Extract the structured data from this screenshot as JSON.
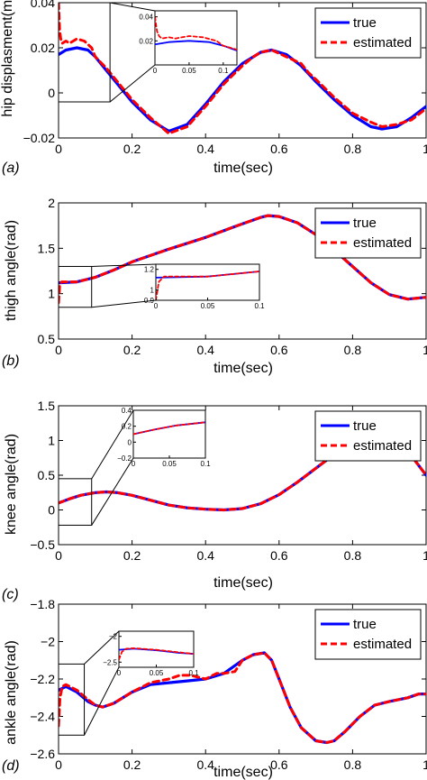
{
  "chart_data": [
    {
      "type": "line",
      "panel": "(a)",
      "xlabel": "time(sec)",
      "ylabel": "hip displasment(m)",
      "xlim": [
        0,
        1
      ],
      "ylim": [
        -0.02,
        0.04
      ],
      "xticks": [
        0,
        0.2,
        0.4,
        0.6,
        0.8,
        1
      ],
      "xtick_labels": [
        "0",
        "0.2",
        "0.4",
        "0.6",
        "0.8",
        "1"
      ],
      "yticks": [
        -0.02,
        0,
        0.02,
        0.04
      ],
      "ytick_labels": [
        "−0.02",
        "0",
        "0.02",
        "0.04"
      ],
      "legend": [
        "true",
        "estimated"
      ],
      "legend_position": "top-right",
      "series": [
        {
          "name": "true",
          "color": "#0000ff",
          "style": "solid",
          "x": [
            0,
            0.02,
            0.05,
            0.08,
            0.1,
            0.13,
            0.15,
            0.2,
            0.25,
            0.3,
            0.35,
            0.4,
            0.45,
            0.5,
            0.55,
            0.58,
            0.62,
            0.66,
            0.7,
            0.75,
            0.8,
            0.85,
            0.88,
            0.92,
            0.96,
            1.0
          ],
          "y": [
            0.017,
            0.019,
            0.02,
            0.019,
            0.016,
            0.01,
            0.006,
            -0.004,
            -0.012,
            -0.017,
            -0.014,
            -0.005,
            0.005,
            0.013,
            0.018,
            0.019,
            0.017,
            0.012,
            0.005,
            -0.003,
            -0.01,
            -0.015,
            -0.016,
            -0.015,
            -0.011,
            -0.006
          ]
        },
        {
          "name": "estimated",
          "color": "#ff0000",
          "style": "dashed",
          "x": [
            0,
            0.003,
            0.006,
            0.01,
            0.02,
            0.03,
            0.04,
            0.05,
            0.07,
            0.09,
            0.1,
            0.13,
            0.15,
            0.2,
            0.25,
            0.3,
            0.35,
            0.4,
            0.45,
            0.5,
            0.53,
            0.55,
            0.58,
            0.62,
            0.66,
            0.68,
            0.7,
            0.75,
            0.8,
            0.85,
            0.88,
            0.92,
            0.96,
            1.0
          ],
          "y": [
            0.04,
            0.028,
            0.024,
            0.022,
            0.023,
            0.022,
            0.023,
            0.024,
            0.023,
            0.02,
            0.016,
            0.011,
            0.007,
            -0.003,
            -0.011,
            -0.018,
            -0.015,
            -0.006,
            0.004,
            0.012,
            0.016,
            0.018,
            0.019,
            0.016,
            0.013,
            0.009,
            0.006,
            -0.002,
            -0.009,
            -0.013,
            -0.015,
            -0.014,
            -0.012,
            -0.007
          ]
        }
      ],
      "inset": {
        "xlim": [
          0,
          0.12
        ],
        "ylim": [
          0,
          0.045
        ],
        "xticks": [
          0,
          0.05,
          0.1
        ],
        "xtick_labels": [
          "0",
          "0.05",
          "0.1"
        ],
        "yticks": [
          0.02,
          0.04
        ],
        "ytick_labels": [
          "0.02",
          "0.04"
        ],
        "zoom_region": {
          "x": [
            0,
            0.14
          ],
          "y": [
            -0.004,
            0.04
          ]
        }
      }
    },
    {
      "type": "line",
      "panel": "(b)",
      "xlabel": "time(sec)",
      "ylabel": "thigh angle(rad)",
      "xlim": [
        0,
        1
      ],
      "ylim": [
        0.5,
        2
      ],
      "xticks": [
        0,
        0.2,
        0.4,
        0.6,
        0.8,
        1
      ],
      "xtick_labels": [
        "0",
        "0.2",
        "0.4",
        "0.6",
        "0.8",
        "1"
      ],
      "yticks": [
        0.5,
        1,
        1.5,
        2
      ],
      "ytick_labels": [
        "0.5",
        "1",
        "1.5",
        "2"
      ],
      "legend": [
        "true",
        "estimated"
      ],
      "legend_position": "top-right",
      "series": [
        {
          "name": "true",
          "color": "#0000ff",
          "style": "solid",
          "x": [
            0,
            0.05,
            0.1,
            0.15,
            0.2,
            0.3,
            0.4,
            0.5,
            0.55,
            0.57,
            0.6,
            0.65,
            0.7,
            0.75,
            0.8,
            0.85,
            0.9,
            0.95,
            1.0
          ],
          "y": [
            1.12,
            1.13,
            1.18,
            1.26,
            1.35,
            1.49,
            1.62,
            1.77,
            1.84,
            1.86,
            1.85,
            1.78,
            1.65,
            1.48,
            1.3,
            1.12,
            0.99,
            0.94,
            0.96
          ]
        },
        {
          "name": "estimated",
          "color": "#ff0000",
          "style": "dashed",
          "x": [
            0,
            0.003,
            0.008,
            0.05,
            0.1,
            0.15,
            0.2,
            0.3,
            0.4,
            0.5,
            0.55,
            0.57,
            0.6,
            0.65,
            0.7,
            0.75,
            0.8,
            0.85,
            0.9,
            0.95,
            1.0
          ],
          "y": [
            0.9,
            1.08,
            1.13,
            1.13,
            1.18,
            1.26,
            1.35,
            1.49,
            1.62,
            1.77,
            1.84,
            1.86,
            1.85,
            1.78,
            1.65,
            1.48,
            1.3,
            1.12,
            0.99,
            0.94,
            0.96
          ]
        }
      ],
      "inset": {
        "xlim": [
          0,
          0.1
        ],
        "ylim": [
          0.9,
          1.25
        ],
        "xticks": [
          0,
          0.05,
          0.1
        ],
        "xtick_labels": [
          "0",
          "0.05",
          "0.1"
        ],
        "yticks": [
          0.9,
          1,
          1.2
        ],
        "ytick_labels": [
          "0.9",
          "1",
          "1.2"
        ],
        "zoom_region": {
          "x": [
            0,
            0.09
          ],
          "y": [
            0.85,
            1.3
          ]
        }
      }
    },
    {
      "type": "line",
      "panel": "(c)",
      "xlabel": "time(sec)",
      "ylabel": "knee angle(rad)",
      "xlim": [
        0,
        1
      ],
      "ylim": [
        -0.5,
        1.5
      ],
      "xticks": [
        0,
        0.2,
        0.4,
        0.6,
        0.8,
        1
      ],
      "xtick_labels": [
        "0",
        "0.2",
        "0.4",
        "0.6",
        "0.8",
        "1"
      ],
      "yticks": [
        -0.5,
        0,
        0.5,
        1,
        1.5
      ],
      "ytick_labels": [
        "−0.5",
        "0",
        "0.5",
        "1",
        "1.5"
      ],
      "legend": [
        "true",
        "estimated"
      ],
      "legend_position": "top-right",
      "series": [
        {
          "name": "true",
          "color": "#0000ff",
          "style": "solid",
          "x": [
            0,
            0.03,
            0.06,
            0.1,
            0.13,
            0.16,
            0.2,
            0.25,
            0.3,
            0.35,
            0.4,
            0.45,
            0.5,
            0.55,
            0.6,
            0.65,
            0.7,
            0.75,
            0.8,
            0.85,
            0.88,
            0.9,
            0.95,
            1.0
          ],
          "y": [
            0.1,
            0.16,
            0.21,
            0.25,
            0.26,
            0.25,
            0.21,
            0.14,
            0.07,
            0.03,
            0.01,
            0.0,
            0.02,
            0.09,
            0.22,
            0.4,
            0.6,
            0.8,
            0.97,
            1.08,
            1.1,
            1.06,
            0.85,
            0.5
          ]
        },
        {
          "name": "estimated",
          "color": "#ff0000",
          "style": "dashed",
          "x": [
            0,
            0.03,
            0.06,
            0.1,
            0.13,
            0.16,
            0.2,
            0.25,
            0.3,
            0.35,
            0.4,
            0.45,
            0.5,
            0.55,
            0.6,
            0.65,
            0.7,
            0.75,
            0.8,
            0.85,
            0.88,
            0.9,
            0.95,
            1.0
          ],
          "y": [
            0.1,
            0.16,
            0.21,
            0.25,
            0.26,
            0.25,
            0.21,
            0.14,
            0.07,
            0.03,
            0.01,
            0.0,
            0.02,
            0.09,
            0.22,
            0.4,
            0.6,
            0.8,
            0.97,
            1.08,
            1.1,
            1.06,
            0.85,
            0.5
          ]
        }
      ],
      "inset": {
        "xlim": [
          0,
          0.1
        ],
        "ylim": [
          -0.2,
          0.4
        ],
        "xticks": [
          0,
          0.05,
          0.1
        ],
        "xtick_labels": [
          "0",
          "0.05",
          "0.1"
        ],
        "yticks": [
          -0.2,
          0,
          0.2,
          0.4
        ],
        "ytick_labels": [
          "−0.2",
          "0",
          "0.2",
          "0.4"
        ],
        "zoom_region": {
          "x": [
            0,
            0.09
          ],
          "y": [
            -0.22,
            0.45
          ]
        }
      }
    },
    {
      "type": "line",
      "panel": "(d)",
      "xlabel": "time(sec)",
      "ylabel": "ankle angle(rad)",
      "xlim": [
        0,
        1
      ],
      "ylim": [
        -2.6,
        -1.8
      ],
      "xticks": [
        0,
        0.2,
        0.4,
        0.6,
        0.8,
        1
      ],
      "xtick_labels": [
        "0",
        "0.2",
        "0.4",
        "0.6",
        "0.8",
        "1"
      ],
      "yticks": [
        -2.6,
        -2.4,
        -2.2,
        -2,
        -1.8
      ],
      "ytick_labels": [
        "−2.6",
        "−2.4",
        "−2.2",
        "−2",
        "−1.8"
      ],
      "legend": [
        "true",
        "estimated"
      ],
      "legend_position": "top-right",
      "series": [
        {
          "name": "true",
          "color": "#0000ff",
          "style": "solid",
          "x": [
            0,
            0.02,
            0.05,
            0.08,
            0.1,
            0.12,
            0.15,
            0.2,
            0.25,
            0.3,
            0.35,
            0.4,
            0.45,
            0.5,
            0.53,
            0.56,
            0.58,
            0.6,
            0.63,
            0.66,
            0.7,
            0.73,
            0.75,
            0.78,
            0.82,
            0.86,
            0.9,
            0.95,
            0.98,
            1.0
          ],
          "y": [
            -2.26,
            -2.24,
            -2.27,
            -2.32,
            -2.34,
            -2.35,
            -2.33,
            -2.27,
            -2.23,
            -2.22,
            -2.21,
            -2.2,
            -2.17,
            -2.1,
            -2.07,
            -2.06,
            -2.1,
            -2.2,
            -2.35,
            -2.46,
            -2.53,
            -2.54,
            -2.53,
            -2.48,
            -2.4,
            -2.34,
            -2.32,
            -2.3,
            -2.28,
            -2.28
          ]
        },
        {
          "name": "estimated",
          "color": "#ff0000",
          "style": "dashed",
          "x": [
            0,
            0.004,
            0.01,
            0.02,
            0.05,
            0.08,
            0.1,
            0.12,
            0.15,
            0.2,
            0.25,
            0.3,
            0.33,
            0.36,
            0.4,
            0.43,
            0.45,
            0.48,
            0.5,
            0.53,
            0.56,
            0.58,
            0.6,
            0.63,
            0.66,
            0.7,
            0.73,
            0.75,
            0.78,
            0.82,
            0.86,
            0.9,
            0.95,
            0.98,
            1.0
          ],
          "y": [
            -2.45,
            -2.3,
            -2.24,
            -2.23,
            -2.26,
            -2.31,
            -2.34,
            -2.35,
            -2.33,
            -2.27,
            -2.22,
            -2.2,
            -2.18,
            -2.18,
            -2.2,
            -2.17,
            -2.17,
            -2.16,
            -2.1,
            -2.07,
            -2.06,
            -2.1,
            -2.2,
            -2.35,
            -2.46,
            -2.53,
            -2.54,
            -2.53,
            -2.48,
            -2.4,
            -2.34,
            -2.32,
            -2.3,
            -2.28,
            -2.28
          ]
        }
      ],
      "inset": {
        "xlim": [
          0,
          0.1
        ],
        "ylim": [
          -2.6,
          -1.9
        ],
        "xticks": [
          0,
          0.05,
          0.1
        ],
        "xtick_labels": [
          "0",
          "0.05",
          "0.1"
        ],
        "yticks": [
          -2.5,
          -2
        ],
        "ytick_labels": [
          "−2.5",
          "−2"
        ],
        "zoom_region": {
          "x": [
            0,
            0.07
          ],
          "y": [
            -2.5,
            -2.12
          ]
        }
      }
    }
  ]
}
